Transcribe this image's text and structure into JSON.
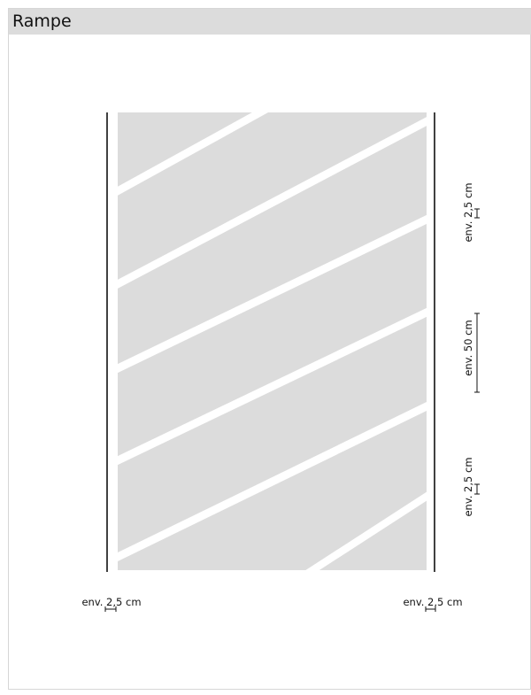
{
  "title": "Rampe",
  "dimensions": {
    "top_right": "env. 2,5 cm",
    "middle_right": "env. 50 cm",
    "bottom_right": "env. 2,5 cm",
    "bottom_left": "env. 2,5 cm",
    "bottom_right_edge": "env. 2,5 cm"
  },
  "colors": {
    "ramp_fill": "#dcdcdc",
    "stripe": "#ffffff",
    "line": "#111111",
    "title_bar": "#dcdcdc"
  }
}
